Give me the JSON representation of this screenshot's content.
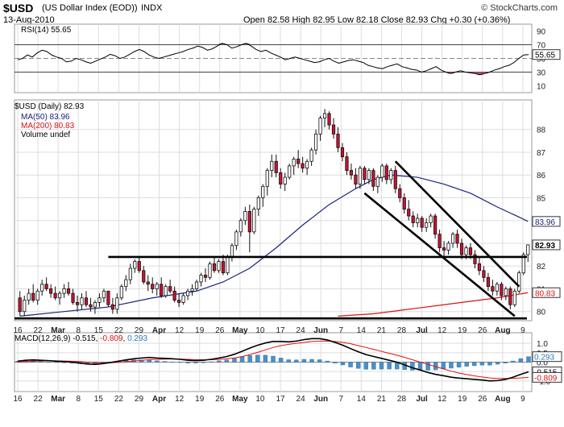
{
  "header": {
    "symbol": "$USD",
    "name": "(US Dollar Index (EOD))",
    "exchange": "INDX",
    "date": "13-Aug-2010",
    "copyright": "© StockCharts.com",
    "quote": "Open 82.58  High 82.95  Low 82.18  Close 82.93  Chg +0.30 (+0.36%)"
  },
  "colors": {
    "up_candle": "#ffffff",
    "down_candle": "#cc1133",
    "ma50": "#1a237e",
    "ma200": "#dd1111",
    "macd_line": "#000000",
    "signal_line": "#dd1111",
    "histogram": "#4a90c8",
    "rsi_line": "#000000",
    "rsi_fill_high": "#5a9a5a",
    "rsi_fill_low": "#c04a6a",
    "grid": "#dddddd"
  },
  "rsi_panel": {
    "label": "RSI(14) 55.65",
    "levels": [
      "90",
      "70",
      "50",
      "30",
      "10"
    ],
    "value_badge": "55.65"
  },
  "price_panel": {
    "legend": {
      "series": "$USD (Daily) 82.93",
      "ma50": "MA(50) 83.96",
      "ma200": "MA(200) 80.83",
      "volume": "Volume undef"
    },
    "y_ticks": [
      "88",
      "87",
      "86",
      "85",
      "84",
      "83",
      "82",
      "81",
      "80"
    ],
    "badges": {
      "ma50": "83.96",
      "close": "82.93",
      "ma200": "80.83"
    }
  },
  "macd_panel": {
    "label_prefix": "MACD(12,26,9)",
    "macd_val": "-0.515",
    "signal_val": "-0.809",
    "hist_val": "0.293",
    "y_ticks": [
      "1.0",
      "0.5",
      "0.0",
      "-0.5",
      "-1.0"
    ],
    "badges": {
      "hist": "0.293",
      "macd": "-0.515",
      "signal": "-0.809"
    }
  },
  "x_axis": {
    "labels": [
      "16",
      "22",
      "Mar",
      "8",
      "15",
      "22",
      "29",
      "Apr",
      "12",
      "19",
      "26",
      "May",
      "10",
      "17",
      "24",
      "Jun",
      "7",
      "14",
      "21",
      "28",
      "Jul",
      "12",
      "19",
      "26",
      "Aug",
      "9"
    ]
  },
  "chart_data": {
    "type": "candlestick",
    "title": "$USD (US Dollar Index (EOD)) INDX",
    "ylim": [
      79.6,
      89.3
    ],
    "candles": [
      [
        80.6,
        80.9,
        79.8,
        80.0
      ],
      [
        80.0,
        80.7,
        79.8,
        80.5
      ],
      [
        80.5,
        81.0,
        80.3,
        80.8
      ],
      [
        80.8,
        81.2,
        80.4,
        80.5
      ],
      [
        80.5,
        81.0,
        80.3,
        80.9
      ],
      [
        80.9,
        81.4,
        80.7,
        81.2
      ],
      [
        81.2,
        81.5,
        80.9,
        81.0
      ],
      [
        81.0,
        81.2,
        80.6,
        80.8
      ],
      [
        80.8,
        81.1,
        80.5,
        80.6
      ],
      [
        80.6,
        80.9,
        80.3,
        80.8
      ],
      [
        80.8,
        81.2,
        80.6,
        81.0
      ],
      [
        81.0,
        81.3,
        80.7,
        80.8
      ],
      [
        80.8,
        81.0,
        80.3,
        80.4
      ],
      [
        80.4,
        80.7,
        80.0,
        80.3
      ],
      [
        80.3,
        80.8,
        80.1,
        80.6
      ],
      [
        80.6,
        80.9,
        80.2,
        80.3
      ],
      [
        80.3,
        80.6,
        80.0,
        80.2
      ],
      [
        80.2,
        80.5,
        79.9,
        80.4
      ],
      [
        80.4,
        80.8,
        80.2,
        80.6
      ],
      [
        80.6,
        81.0,
        80.4,
        80.9
      ],
      [
        80.9,
        80.9,
        80.2,
        80.3
      ],
      [
        80.3,
        80.6,
        79.9,
        80.1
      ],
      [
        80.1,
        80.8,
        79.9,
        80.6
      ],
      [
        80.6,
        81.2,
        80.5,
        81.1
      ],
      [
        81.1,
        81.6,
        80.9,
        81.4
      ],
      [
        81.4,
        82.1,
        81.2,
        81.9
      ],
      [
        81.9,
        82.3,
        81.7,
        82.2
      ],
      [
        82.2,
        82.4,
        81.7,
        81.8
      ],
      [
        81.8,
        82.0,
        81.2,
        81.3
      ],
      [
        81.3,
        81.6,
        80.9,
        81.2
      ],
      [
        81.2,
        81.5,
        80.8,
        81.0
      ],
      [
        81.0,
        81.3,
        80.7,
        81.2
      ],
      [
        81.2,
        81.5,
        80.6,
        80.7
      ],
      [
        80.7,
        81.2,
        80.6,
        81.1
      ],
      [
        81.1,
        81.4,
        80.8,
        80.9
      ],
      [
        80.9,
        81.1,
        80.4,
        80.5
      ],
      [
        80.5,
        80.8,
        80.2,
        80.4
      ],
      [
        80.4,
        80.8,
        80.3,
        80.7
      ],
      [
        80.7,
        81.0,
        80.5,
        80.9
      ],
      [
        80.9,
        81.2,
        80.7,
        81.0
      ],
      [
        81.0,
        81.4,
        80.9,
        81.3
      ],
      [
        81.3,
        81.7,
        81.1,
        81.6
      ],
      [
        81.6,
        81.9,
        81.3,
        81.5
      ],
      [
        81.5,
        82.2,
        81.4,
        82.1
      ],
      [
        82.1,
        82.4,
        81.7,
        81.8
      ],
      [
        81.8,
        82.3,
        81.7,
        82.2
      ],
      [
        82.2,
        82.5,
        81.6,
        81.7
      ],
      [
        81.7,
        82.5,
        81.6,
        82.4
      ],
      [
        82.4,
        83.0,
        82.2,
        82.9
      ],
      [
        82.9,
        83.6,
        82.7,
        83.5
      ],
      [
        83.5,
        84.1,
        83.3,
        84.0
      ],
      [
        84.0,
        84.6,
        83.8,
        84.4
      ],
      [
        84.4,
        84.7,
        82.6,
        83.5
      ],
      [
        83.5,
        84.6,
        83.4,
        84.5
      ],
      [
        84.5,
        85.1,
        84.2,
        85.0
      ],
      [
        85.0,
        85.6,
        84.6,
        85.5
      ],
      [
        85.5,
        86.3,
        85.1,
        86.2
      ],
      [
        86.2,
        86.9,
        85.9,
        86.6
      ],
      [
        86.6,
        86.9,
        85.9,
        86.1
      ],
      [
        86.1,
        86.3,
        85.4,
        85.6
      ],
      [
        85.6,
        86.1,
        85.3,
        85.9
      ],
      [
        85.9,
        86.5,
        85.8,
        86.4
      ],
      [
        86.4,
        86.8,
        86.0,
        86.7
      ],
      [
        86.7,
        87.1,
        86.3,
        86.5
      ],
      [
        86.5,
        86.8,
        86.1,
        86.3
      ],
      [
        86.3,
        86.7,
        86.0,
        86.6
      ],
      [
        86.6,
        87.2,
        86.4,
        87.1
      ],
      [
        87.1,
        88.0,
        86.9,
        87.8
      ],
      [
        87.8,
        88.6,
        87.5,
        88.5
      ],
      [
        88.5,
        88.9,
        88.1,
        88.7
      ],
      [
        88.7,
        88.8,
        88.0,
        88.2
      ],
      [
        88.2,
        88.5,
        87.6,
        87.8
      ],
      [
        87.8,
        88.1,
        87.0,
        87.2
      ],
      [
        87.2,
        87.4,
        86.6,
        86.8
      ],
      [
        86.8,
        87.0,
        86.0,
        86.2
      ],
      [
        86.2,
        86.5,
        85.8,
        86.0
      ],
      [
        86.0,
        86.3,
        85.4,
        85.6
      ],
      [
        85.6,
        86.4,
        85.4,
        86.3
      ],
      [
        86.3,
        86.4,
        85.6,
        85.8
      ],
      [
        85.8,
        86.3,
        85.6,
        86.2
      ],
      [
        86.2,
        86.3,
        85.3,
        85.5
      ],
      [
        85.5,
        86.0,
        85.2,
        85.9
      ],
      [
        85.9,
        86.5,
        85.7,
        86.4
      ],
      [
        86.4,
        86.5,
        85.6,
        85.8
      ],
      [
        85.8,
        86.3,
        85.6,
        86.2
      ],
      [
        86.2,
        86.4,
        85.2,
        85.4
      ],
      [
        85.4,
        85.6,
        84.8,
        85.0
      ],
      [
        85.0,
        85.2,
        84.3,
        84.5
      ],
      [
        84.5,
        84.9,
        84.0,
        84.2
      ],
      [
        84.2,
        84.4,
        83.7,
        83.9
      ],
      [
        83.9,
        84.3,
        83.7,
        84.1
      ],
      [
        84.1,
        84.2,
        83.5,
        83.7
      ],
      [
        83.7,
        84.1,
        83.5,
        83.9
      ],
      [
        83.9,
        84.3,
        83.7,
        84.2
      ],
      [
        84.2,
        84.3,
        83.2,
        83.4
      ],
      [
        83.4,
        83.6,
        82.6,
        82.8
      ],
      [
        82.8,
        83.1,
        82.4,
        82.7
      ],
      [
        82.7,
        83.1,
        82.5,
        83.0
      ],
      [
        83.0,
        83.5,
        82.8,
        83.4
      ],
      [
        83.4,
        83.6,
        82.8,
        83.0
      ],
      [
        83.0,
        83.2,
        82.3,
        82.5
      ],
      [
        82.5,
        82.9,
        82.3,
        82.8
      ],
      [
        82.8,
        83.0,
        82.3,
        82.5
      ],
      [
        82.5,
        82.7,
        81.9,
        82.1
      ],
      [
        82.1,
        82.4,
        81.6,
        81.8
      ],
      [
        81.8,
        82.0,
        81.3,
        81.5
      ],
      [
        81.5,
        81.7,
        80.9,
        81.1
      ],
      [
        81.1,
        81.4,
        80.7,
        80.9
      ],
      [
        80.9,
        81.3,
        80.7,
        81.2
      ],
      [
        81.2,
        81.3,
        80.5,
        80.7
      ],
      [
        80.7,
        81.1,
        80.5,
        81.0
      ],
      [
        81.0,
        81.1,
        80.1,
        80.3
      ],
      [
        80.3,
        81.0,
        80.2,
        80.9
      ],
      [
        80.9,
        81.8,
        80.8,
        81.7
      ],
      [
        81.7,
        82.6,
        81.6,
        82.5
      ],
      [
        82.5,
        82.95,
        82.18,
        82.93
      ]
    ],
    "ma50": [
      [
        0,
        79.8
      ],
      [
        10,
        80.0
      ],
      [
        20,
        80.2
      ],
      [
        30,
        80.6
      ],
      [
        40,
        80.9
      ],
      [
        46,
        81.3
      ],
      [
        52,
        81.9
      ],
      [
        58,
        82.8
      ],
      [
        64,
        83.8
      ],
      [
        70,
        84.7
      ],
      [
        76,
        85.4
      ],
      [
        80,
        85.8
      ],
      [
        84,
        86.0
      ],
      [
        90,
        85.9
      ],
      [
        96,
        85.6
      ],
      [
        102,
        85.2
      ],
      [
        108,
        84.6
      ],
      [
        113,
        84.15
      ],
      [
        115,
        83.96
      ]
    ],
    "ma200": [
      [
        72,
        79.8
      ],
      [
        80,
        79.9
      ],
      [
        90,
        80.15
      ],
      [
        100,
        80.4
      ],
      [
        108,
        80.6
      ],
      [
        115,
        80.83
      ]
    ],
    "horizontal_lines": [
      82.4,
      79.7
    ],
    "channel_lines": [
      [
        [
          85,
          86.6
        ],
        [
          113,
          81.1
        ]
      ],
      [
        [
          78,
          85.2
        ],
        [
          112,
          79.8
        ]
      ]
    ],
    "rsi": {
      "current": 55.65,
      "values": [
        48,
        50,
        55,
        52,
        58,
        62,
        60,
        55,
        52,
        50,
        45,
        46,
        50,
        48,
        45,
        43,
        46,
        49,
        52,
        56,
        54,
        50,
        52,
        56,
        60,
        63,
        60,
        55,
        52,
        50,
        52,
        54,
        56,
        58,
        60,
        63,
        65,
        68,
        66,
        62,
        64,
        68,
        72,
        70,
        65,
        67,
        70,
        72,
        68,
        63,
        60,
        62,
        58,
        55,
        52,
        48,
        50,
        52,
        50,
        48,
        46,
        44,
        45,
        48,
        50,
        46,
        43,
        45,
        47,
        48,
        46,
        44,
        40,
        38,
        36,
        35,
        38,
        40,
        42,
        38,
        36,
        34,
        33,
        30,
        32,
        35,
        38,
        33,
        30,
        28,
        30,
        32,
        30,
        29,
        28,
        26,
        28,
        30,
        33,
        35,
        38,
        40,
        44,
        50,
        55,
        55.65
      ]
    },
    "macd": {
      "macd": -0.515,
      "signal": -0.809,
      "histogram": 0.293,
      "macd_values": [
        0.05,
        0.1,
        0.12,
        0.1,
        0.08,
        0.05,
        0.03,
        0.0,
        -0.05,
        -0.1,
        -0.12,
        -0.08,
        -0.02,
        0.05,
        0.12,
        0.18,
        0.22,
        0.25,
        0.22,
        0.2,
        0.18,
        0.15,
        0.1,
        0.08,
        0.1,
        0.15,
        0.22,
        0.3,
        0.42,
        0.58,
        0.75,
        0.9,
        1.02,
        1.1,
        1.1,
        1.08,
        1.12,
        1.2,
        1.25,
        1.25,
        1.18,
        1.05,
        0.9,
        0.72,
        0.55,
        0.4,
        0.3,
        0.2,
        0.1,
        0.0,
        -0.15,
        -0.3,
        -0.42,
        -0.55,
        -0.65,
        -0.72,
        -0.8,
        -0.85,
        -0.88,
        -0.92,
        -0.95,
        -1.0,
        -0.98,
        -0.92,
        -0.8,
        -0.65,
        -0.515
      ],
      "signal_values": [
        0.0,
        0.02,
        0.05,
        0.07,
        0.07,
        0.07,
        0.06,
        0.05,
        0.03,
        0.0,
        -0.02,
        -0.03,
        -0.03,
        -0.01,
        0.02,
        0.06,
        0.1,
        0.13,
        0.15,
        0.16,
        0.17,
        0.16,
        0.15,
        0.13,
        0.13,
        0.13,
        0.15,
        0.18,
        0.22,
        0.3,
        0.4,
        0.52,
        0.65,
        0.78,
        0.88,
        0.95,
        1.0,
        1.05,
        1.1,
        1.12,
        1.12,
        1.1,
        1.05,
        0.98,
        0.88,
        0.78,
        0.68,
        0.57,
        0.47,
        0.37,
        0.25,
        0.13,
        0.0,
        -0.12,
        -0.24,
        -0.36,
        -0.48,
        -0.58,
        -0.66,
        -0.73,
        -0.79,
        -0.84,
        -0.87,
        -0.87,
        -0.86,
        -0.84,
        -0.809
      ]
    }
  }
}
